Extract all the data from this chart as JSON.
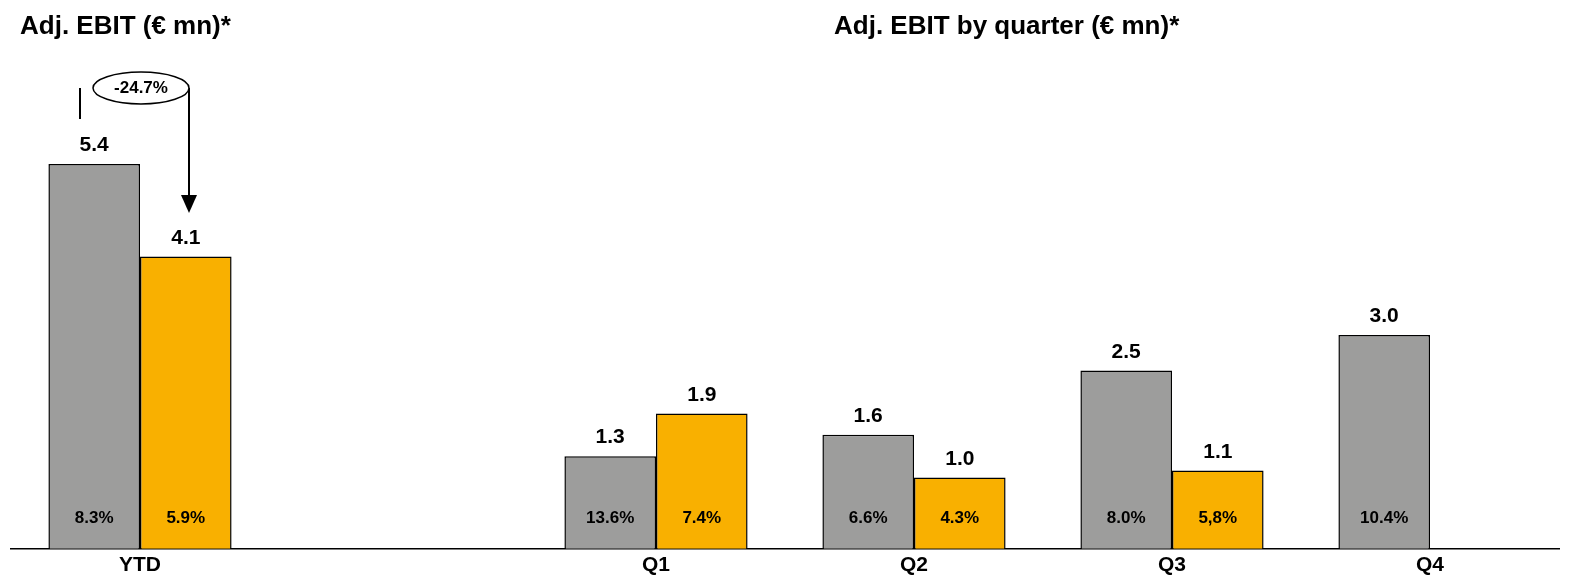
{
  "chart_data": {
    "type": "bar",
    "title": "Adj. EBIT (€ mn)*",
    "subtitle": "Adj. EBIT by quarter (€ mn)*",
    "categories": [
      "YTD",
      null,
      "Q1",
      "Q2",
      "Q3",
      "Q4"
    ],
    "series": [
      {
        "color": "#9d9d9c",
        "values": [
          5.4,
          null,
          1.3,
          1.6,
          2.5,
          3.0
        ],
        "value_labels": [
          "5.4",
          null,
          "1.3",
          "1.6",
          "2.5",
          "3.0"
        ]
      },
      {
        "color": "#f9b000",
        "values": [
          4.1,
          null,
          1.9,
          1.0,
          1.1,
          null
        ],
        "value_labels": [
          "4.1",
          null,
          "1.9",
          "1.0",
          "1.1",
          null
        ]
      }
    ],
    "tick_labels": "x",
    "grid": false,
    "legend": false,
    "annotations": [
      "-24.7%",
      {
        "text": "8.3%",
        "x": "YTD"
      },
      {
        "text": "5.9%",
        "x": "YTD"
      },
      {
        "text": "13.6%",
        "x": "Q1"
      },
      {
        "text": "7.4%",
        "x": "Q1"
      },
      {
        "text": "6.6%",
        "x": "Q2"
      },
      {
        "text": "4.3%",
        "x": "Q2"
      },
      {
        "text": "8.0%",
        "x": "Q3"
      },
      {
        "text": "5,8%",
        "x": "Q3"
      },
      {
        "text": "10.4%",
        "x": "Q4"
      }
    ]
  }
}
